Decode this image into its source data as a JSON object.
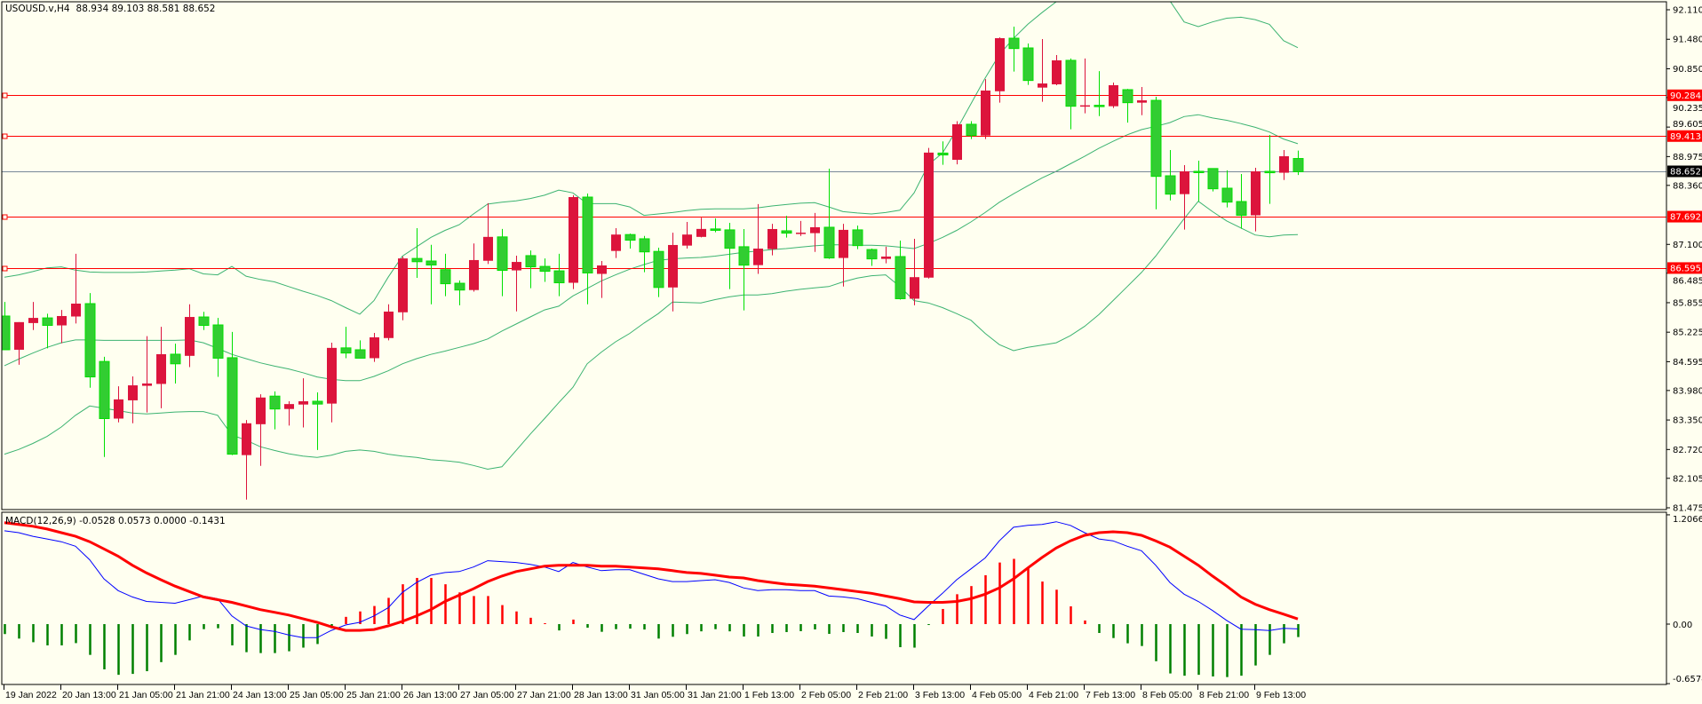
{
  "header": {
    "symbol": "USOUSD.v,H4",
    "ohlc_text": "88.934 89.103 88.581 88.652"
  },
  "chart_data": {
    "type": "candlestick",
    "title": "USOUSD.v,H4",
    "timeframe": "H4",
    "time_labels": [
      "19 Jan 2022",
      "20 Jan 13:00",
      "21 Jan 05:00",
      "21 Jan 21:00",
      "24 Jan 13:00",
      "25 Jan 05:00",
      "25 Jan 21:00",
      "26 Jan 13:00",
      "27 Jan 05:00",
      "27 Jan 21:00",
      "28 Jan 13:00",
      "31 Jan 05:00",
      "31 Jan 21:00",
      "1 Feb 13:00",
      "2 Feb 05:00",
      "2 Feb 21:00",
      "3 Feb 13:00",
      "4 Feb 05:00",
      "4 Feb 21:00",
      "7 Feb 13:00",
      "8 Feb 05:00",
      "8 Feb 21:00",
      "9 Feb 13:00"
    ],
    "time_label_every_n_bars": 4,
    "candles_ohlc": [
      [
        85.57,
        85.87,
        84.85,
        84.85
      ],
      [
        84.85,
        85.44,
        84.53,
        85.44
      ],
      [
        85.42,
        85.87,
        85.27,
        85.53
      ],
      [
        85.53,
        85.62,
        84.88,
        85.37
      ],
      [
        85.37,
        85.7,
        84.99,
        85.57
      ],
      [
        85.56,
        86.9,
        85.41,
        85.835
      ],
      [
        85.835,
        86.06,
        84.04,
        84.27
      ],
      [
        84.6,
        84.7,
        82.56,
        83.38
      ],
      [
        83.38,
        84.07,
        83.3,
        83.79
      ],
      [
        83.77,
        84.28,
        83.28,
        84.09
      ],
      [
        84.08,
        85.14,
        83.51,
        84.13
      ],
      [
        84.12,
        85.34,
        83.6,
        84.755
      ],
      [
        84.755,
        84.98,
        84.13,
        84.55
      ],
      [
        84.72,
        85.82,
        84.48,
        85.55
      ],
      [
        85.55,
        85.66,
        85.27,
        85.37
      ],
      [
        85.38,
        85.53,
        84.27,
        84.67
      ],
      [
        84.68,
        85.23,
        82.6,
        82.62
      ],
      [
        82.6,
        83.35,
        81.65,
        83.28
      ],
      [
        83.26,
        83.9,
        82.37,
        83.83
      ],
      [
        83.86,
        83.96,
        83.15,
        83.585
      ],
      [
        83.585,
        83.75,
        83.23,
        83.69
      ],
      [
        83.68,
        84.24,
        83.19,
        83.75
      ],
      [
        83.75,
        83.94,
        82.71,
        83.69
      ],
      [
        83.7,
        85.0,
        83.3,
        84.89
      ],
      [
        84.89,
        85.34,
        84.67,
        84.78
      ],
      [
        84.85,
        85.05,
        84.67,
        84.67
      ],
      [
        84.67,
        85.21,
        84.59,
        85.115
      ],
      [
        85.1,
        85.82,
        85.05,
        85.665
      ],
      [
        85.65,
        86.84,
        85.48,
        86.8
      ],
      [
        86.8,
        87.447,
        86.385,
        86.73
      ],
      [
        86.745,
        87.09,
        85.82,
        86.66
      ],
      [
        86.56,
        86.9,
        85.995,
        86.26
      ],
      [
        86.27,
        86.33,
        85.8,
        86.125
      ],
      [
        86.125,
        87.12,
        86.09,
        86.765
      ],
      [
        86.75,
        87.98,
        86.68,
        87.26
      ],
      [
        87.26,
        87.43,
        85.995,
        86.545
      ],
      [
        86.545,
        86.86,
        85.67,
        86.725
      ],
      [
        86.86,
        86.97,
        86.165,
        86.62
      ],
      [
        86.63,
        86.8,
        86.3,
        86.525
      ],
      [
        86.535,
        86.9,
        85.995,
        86.28
      ],
      [
        86.28,
        88.15,
        86.145,
        88.11
      ],
      [
        88.11,
        88.185,
        85.82,
        86.49
      ],
      [
        86.47,
        86.745,
        85.955,
        86.65
      ],
      [
        86.96,
        87.447,
        86.81,
        87.31
      ],
      [
        87.31,
        87.33,
        87.01,
        87.19
      ],
      [
        87.22,
        87.28,
        86.505,
        86.94
      ],
      [
        86.95,
        87.03,
        85.975,
        86.18
      ],
      [
        86.18,
        87.35,
        85.67,
        87.087
      ],
      [
        87.074,
        87.58,
        87.01,
        87.31
      ],
      [
        87.26,
        87.67,
        87.25,
        87.43
      ],
      [
        87.43,
        87.655,
        87.36,
        87.4
      ],
      [
        87.41,
        87.56,
        86.145,
        87.017
      ],
      [
        87.05,
        87.428,
        85.69,
        86.657
      ],
      [
        86.657,
        87.96,
        86.47,
        87.01
      ],
      [
        87.0,
        87.54,
        86.865,
        87.428
      ],
      [
        87.39,
        87.71,
        87.245,
        87.34
      ],
      [
        87.34,
        87.6,
        87.28,
        87.35
      ],
      [
        87.34,
        87.77,
        86.94,
        87.466
      ],
      [
        87.466,
        88.717,
        86.79,
        86.81
      ],
      [
        86.81,
        87.54,
        86.2,
        87.41
      ],
      [
        87.41,
        87.5,
        86.998,
        87.074
      ],
      [
        86.99,
        87.01,
        86.64,
        86.79
      ],
      [
        86.79,
        87.05,
        86.695,
        86.84
      ],
      [
        86.84,
        87.18,
        85.92,
        85.94
      ],
      [
        85.94,
        87.22,
        85.8,
        86.4
      ],
      [
        86.39,
        89.16,
        86.37,
        89.06
      ],
      [
        89.05,
        89.3,
        88.8,
        89.01
      ],
      [
        88.906,
        89.73,
        88.81,
        89.665
      ],
      [
        89.665,
        89.73,
        89.35,
        89.424
      ],
      [
        89.424,
        90.63,
        89.35,
        90.385
      ],
      [
        90.37,
        91.52,
        90.126,
        91.503
      ],
      [
        91.503,
        91.75,
        90.79,
        91.282
      ],
      [
        91.295,
        91.39,
        90.505,
        90.6
      ],
      [
        90.448,
        91.484,
        90.145,
        90.536
      ],
      [
        90.518,
        91.143,
        90.499,
        91.03
      ],
      [
        91.03,
        91.07,
        89.557,
        90.05
      ],
      [
        90.05,
        91.07,
        89.898,
        90.07
      ],
      [
        90.07,
        90.8,
        89.84,
        90.05
      ],
      [
        90.05,
        90.555,
        90.012,
        90.499
      ],
      [
        90.404,
        90.42,
        89.7,
        90.126
      ],
      [
        90.126,
        90.46,
        89.86,
        90.176
      ],
      [
        90.176,
        90.252,
        87.85,
        88.552
      ],
      [
        88.565,
        89.115,
        88.04,
        88.173
      ],
      [
        88.173,
        88.792,
        87.415,
        88.66
      ],
      [
        88.66,
        88.887,
        88.021,
        88.64
      ],
      [
        88.72,
        88.72,
        88.23,
        88.287
      ],
      [
        88.3,
        88.68,
        87.89,
        88.003
      ],
      [
        88.015,
        88.603,
        87.434,
        87.72
      ],
      [
        87.72,
        88.735,
        87.377,
        88.66
      ],
      [
        88.66,
        89.437,
        87.965,
        88.63
      ],
      [
        88.63,
        89.115,
        88.476,
        88.982
      ],
      [
        88.934,
        89.103,
        88.581,
        88.652
      ]
    ],
    "bollinger": {
      "upper": [
        86.4,
        86.45,
        86.52,
        86.6,
        86.62,
        86.55,
        86.51,
        86.5,
        86.5,
        86.5,
        86.51,
        86.53,
        86.55,
        86.58,
        86.47,
        86.45,
        86.63,
        86.42,
        86.35,
        86.3,
        86.2,
        86.1,
        86.01,
        85.9,
        85.75,
        85.61,
        85.9,
        86.4,
        86.85,
        87.05,
        87.25,
        87.4,
        87.52,
        87.75,
        87.96,
        88.0,
        88.03,
        88.08,
        88.15,
        88.26,
        88.2,
        87.97,
        87.97,
        87.97,
        87.9,
        87.72,
        87.75,
        87.78,
        87.82,
        87.85,
        87.86,
        87.86,
        87.86,
        87.88,
        87.92,
        87.95,
        87.98,
        87.99,
        87.9,
        87.8,
        87.77,
        87.75,
        87.78,
        87.83,
        88.2,
        88.8,
        89.05,
        89.55,
        90.1,
        90.65,
        91.15,
        91.5,
        91.8,
        92.05,
        92.28,
        92.45,
        92.55,
        92.6,
        92.62,
        92.6,
        92.55,
        92.45,
        92.3,
        91.85,
        91.75,
        91.85,
        91.93,
        91.95,
        91.9,
        91.8,
        91.45,
        91.3
      ],
      "middle": [
        84.51,
        84.65,
        84.78,
        84.9,
        85.0,
        85.06,
        85.06,
        85.05,
        85.05,
        85.05,
        85.05,
        85.05,
        85.05,
        85.06,
        85.0,
        84.88,
        84.75,
        84.66,
        84.57,
        84.5,
        84.44,
        84.36,
        84.27,
        84.22,
        84.19,
        84.19,
        84.28,
        84.4,
        84.55,
        84.66,
        84.75,
        84.82,
        84.9,
        84.98,
        85.08,
        85.25,
        85.4,
        85.55,
        85.7,
        85.78,
        86.0,
        86.16,
        86.32,
        86.45,
        86.57,
        86.67,
        86.76,
        86.79,
        86.81,
        86.82,
        86.85,
        86.89,
        86.93,
        86.96,
        86.99,
        87.01,
        87.04,
        87.07,
        87.09,
        87.09,
        87.08,
        87.08,
        87.07,
        87.04,
        87.01,
        87.12,
        87.25,
        87.4,
        87.58,
        87.78,
        88.0,
        88.18,
        88.35,
        88.52,
        88.66,
        88.82,
        88.98,
        89.15,
        89.3,
        89.44,
        89.55,
        89.62,
        89.7,
        89.83,
        89.87,
        89.8,
        89.75,
        89.68,
        89.6,
        89.5,
        89.35,
        89.25
      ],
      "lower": [
        82.62,
        82.72,
        82.85,
        83.0,
        83.2,
        83.45,
        83.65,
        83.6,
        83.55,
        83.5,
        83.48,
        83.5,
        83.52,
        83.53,
        83.53,
        83.45,
        83.03,
        82.92,
        82.78,
        82.7,
        82.63,
        82.58,
        82.55,
        82.6,
        82.68,
        82.71,
        82.68,
        82.62,
        82.58,
        82.55,
        82.5,
        82.48,
        82.45,
        82.38,
        82.3,
        82.35,
        82.7,
        83.05,
        83.38,
        83.72,
        84.05,
        84.55,
        84.8,
        85.02,
        85.2,
        85.42,
        85.62,
        85.87,
        85.86,
        85.85,
        85.92,
        85.98,
        86.02,
        86.02,
        86.05,
        86.1,
        86.14,
        86.17,
        86.2,
        86.3,
        86.38,
        86.43,
        86.45,
        86.2,
        85.9,
        85.85,
        85.75,
        85.62,
        85.48,
        85.2,
        84.96,
        84.83,
        84.9,
        84.95,
        85.0,
        85.15,
        85.35,
        85.6,
        85.9,
        86.2,
        86.5,
        86.85,
        87.25,
        87.65,
        88.02,
        87.8,
        87.6,
        87.45,
        87.3,
        87.26,
        87.3,
        87.31
      ]
    },
    "price_axis": {
      "ticks": [
        "92.110",
        "91.480",
        "90.850",
        "90.235",
        "89.605",
        "88.975",
        "88.360",
        "87.100",
        "86.485",
        "85.855",
        "85.225",
        "84.595",
        "83.980",
        "83.350",
        "82.720",
        "82.105",
        "81.475"
      ],
      "range": [
        81.456,
        92.32
      ]
    },
    "horizontal_lines": [
      {
        "value": "90.284"
      },
      {
        "value": "89.413"
      },
      {
        "value": "87.692"
      },
      {
        "value": "86.595"
      }
    ],
    "current_price": "88.652",
    "macd": {
      "label": "MACD(12,26,9) -0.0528 0.0573 0.0000 -0.1431",
      "range": [
        -0.6574,
        1.2066
      ],
      "axis_ticks": [
        "1.2066",
        "0.00",
        "-0.6574"
      ],
      "main": [
        1.03,
        1.01,
        0.97,
        0.94,
        0.91,
        0.86,
        0.71,
        0.5,
        0.37,
        0.3,
        0.25,
        0.24,
        0.23,
        0.27,
        0.31,
        0.28,
        0.09,
        -0.02,
        -0.06,
        -0.08,
        -0.12,
        -0.15,
        -0.15,
        -0.07,
        -0.01,
        0.02,
        0.09,
        0.18,
        0.35,
        0.46,
        0.54,
        0.57,
        0.58,
        0.63,
        0.7,
        0.69,
        0.68,
        0.66,
        0.63,
        0.58,
        0.68,
        0.63,
        0.59,
        0.6,
        0.6,
        0.55,
        0.5,
        0.47,
        0.47,
        0.48,
        0.49,
        0.46,
        0.4,
        0.37,
        0.38,
        0.38,
        0.37,
        0.37,
        0.31,
        0.3,
        0.28,
        0.24,
        0.2,
        0.1,
        0.05,
        0.2,
        0.34,
        0.49,
        0.61,
        0.73,
        0.92,
        1.07,
        1.09,
        1.1,
        1.13,
        1.09,
        1.01,
        0.94,
        0.92,
        0.86,
        0.81,
        0.65,
        0.46,
        0.33,
        0.25,
        0.15,
        0.04,
        -0.056,
        -0.062,
        -0.072,
        -0.046,
        -0.0528
      ],
      "signal": [
        1.12,
        1.1,
        1.08,
        1.05,
        1.01,
        0.97,
        0.91,
        0.83,
        0.75,
        0.65,
        0.565,
        0.49,
        0.42,
        0.36,
        0.3,
        0.27,
        0.24,
        0.2,
        0.16,
        0.13,
        0.1,
        0.06,
        0.02,
        -0.03,
        -0.07,
        -0.07,
        -0.06,
        -0.02,
        0.03,
        0.09,
        0.16,
        0.25,
        0.32,
        0.39,
        0.47,
        0.53,
        0.58,
        0.61,
        0.64,
        0.65,
        0.65,
        0.65,
        0.64,
        0.64,
        0.63,
        0.62,
        0.61,
        0.59,
        0.57,
        0.56,
        0.54,
        0.52,
        0.51,
        0.48,
        0.46,
        0.44,
        0.43,
        0.42,
        0.4,
        0.38,
        0.36,
        0.34,
        0.31,
        0.28,
        0.245,
        0.24,
        0.24,
        0.25,
        0.28,
        0.33,
        0.4,
        0.5,
        0.62,
        0.735,
        0.84,
        0.92,
        0.98,
        1.01,
        1.02,
        1.01,
        0.98,
        0.92,
        0.85,
        0.75,
        0.65,
        0.53,
        0.42,
        0.3,
        0.22,
        0.16,
        0.11,
        0.0573
      ],
      "histogram": [
        -0.11,
        -0.16,
        -0.2,
        -0.235,
        -0.235,
        -0.21,
        -0.34,
        -0.5,
        -0.56,
        -0.55,
        -0.52,
        -0.42,
        -0.34,
        -0.18,
        -0.056,
        -0.046,
        -0.235,
        -0.31,
        -0.32,
        -0.32,
        -0.3,
        -0.26,
        -0.22,
        -0.046,
        0.08,
        0.14,
        0.2,
        0.29,
        0.44,
        0.51,
        0.51,
        0.44,
        0.35,
        0.31,
        0.31,
        0.21,
        0.14,
        0.07,
        0.01,
        -0.07,
        0.05,
        -0.04,
        -0.085,
        -0.056,
        -0.05,
        -0.06,
        -0.16,
        -0.14,
        -0.11,
        -0.08,
        -0.056,
        -0.08,
        -0.137,
        -0.137,
        -0.098,
        -0.088,
        -0.078,
        -0.059,
        -0.108,
        -0.088,
        -0.098,
        -0.137,
        -0.163,
        -0.255,
        -0.26,
        -0.01,
        0.167,
        0.33,
        0.42,
        0.54,
        0.68,
        0.72,
        0.62,
        0.47,
        0.38,
        0.196,
        0.04,
        -0.098,
        -0.154,
        -0.212,
        -0.242,
        -0.41,
        -0.545,
        -0.57,
        -0.56,
        -0.578,
        -0.585,
        -0.57,
        -0.457,
        -0.34,
        -0.212,
        -0.1431
      ]
    },
    "colors": {
      "background": "#FFFFF0",
      "bull_candle": "#DC143C",
      "bear_candle": "#32CD32",
      "bear_wick": "#00E000",
      "bands": "#3CB371",
      "hline": "#FF0000",
      "current_price_line": "#778899",
      "macd_main": "#0000FF",
      "macd_signal": "#FF0000",
      "hist_positive": "#FF0000",
      "hist_negative": "#008000"
    }
  }
}
